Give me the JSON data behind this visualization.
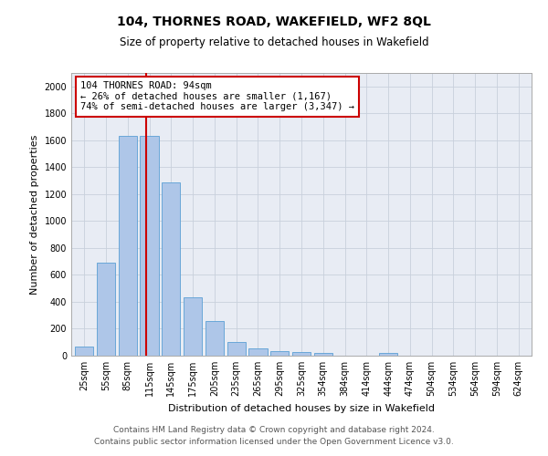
{
  "title1": "104, THORNES ROAD, WAKEFIELD, WF2 8QL",
  "title2": "Size of property relative to detached houses in Wakefield",
  "xlabel": "Distribution of detached houses by size in Wakefield",
  "ylabel": "Number of detached properties",
  "categories": [
    "25sqm",
    "55sqm",
    "85sqm",
    "115sqm",
    "145sqm",
    "175sqm",
    "205sqm",
    "235sqm",
    "265sqm",
    "295sqm",
    "325sqm",
    "354sqm",
    "384sqm",
    "414sqm",
    "444sqm",
    "474sqm",
    "504sqm",
    "534sqm",
    "564sqm",
    "594sqm",
    "624sqm"
  ],
  "values": [
    70,
    690,
    1635,
    1635,
    1290,
    435,
    255,
    100,
    55,
    35,
    30,
    20,
    0,
    0,
    20,
    0,
    0,
    0,
    0,
    0,
    0
  ],
  "bar_color": "#aec6e8",
  "bar_edgecolor": "#5a9fd4",
  "vline_x": 2.87,
  "vline_color": "#cc0000",
  "annotation_text": "104 THORNES ROAD: 94sqm\n← 26% of detached houses are smaller (1,167)\n74% of semi-detached houses are larger (3,347) →",
  "annotation_box_edgecolor": "#cc0000",
  "annotation_fontsize": 7.5,
  "ylim": [
    0,
    2100
  ],
  "yticks": [
    0,
    200,
    400,
    600,
    800,
    1000,
    1200,
    1400,
    1600,
    1800,
    2000
  ],
  "grid_color": "#c8d0dc",
  "background_color": "#e8ecf4",
  "footer1": "Contains HM Land Registry data © Crown copyright and database right 2024.",
  "footer2": "Contains public sector information licensed under the Open Government Licence v3.0.",
  "title1_fontsize": 10,
  "title2_fontsize": 8.5,
  "xlabel_fontsize": 8,
  "ylabel_fontsize": 8,
  "tick_fontsize": 7,
  "footer_fontsize": 6.5
}
